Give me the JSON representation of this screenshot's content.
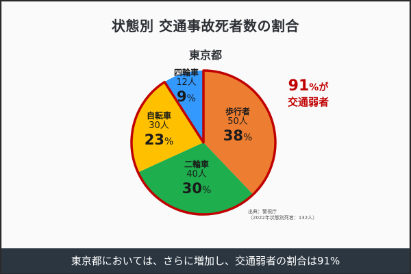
{
  "title": "状態別 交通事故死者数の割合",
  "subtitle": "東京都",
  "chart_data": {
    "type": "pie",
    "title": "状態別 交通事故死者数の割合",
    "subtitle": "東京都",
    "categories": [
      "歩行者",
      "二輪車",
      "自転車",
      "四輪車"
    ],
    "values": [
      50,
      40,
      30,
      12
    ],
    "percentages": [
      38,
      30,
      23,
      9
    ],
    "unit": "人",
    "colors": [
      "#ED7D31",
      "#1EAE4E",
      "#FFC000",
      "#3399FF"
    ],
    "highlight": {
      "categories": [
        "歩行者",
        "二輪車",
        "自転車"
      ],
      "border_color": "#C00000",
      "annotation": "91%が交通弱者"
    },
    "total": 132
  },
  "labels": [
    {
      "category": "歩行者",
      "count": "50人",
      "pct": "38",
      "pct_unit": "%"
    },
    {
      "category": "二輪車",
      "count": "40人",
      "pct": "30",
      "pct_unit": "%"
    },
    {
      "category": "自転車",
      "count": "30人",
      "pct": "23",
      "pct_unit": "%"
    },
    {
      "category": "四輪車",
      "count": "12人",
      "pct": "9",
      "pct_unit": "%"
    }
  ],
  "callout": {
    "number": "91",
    "unit": "%が",
    "line2": "交通弱者"
  },
  "source": {
    "line1": "出典：警視庁",
    "line2": "（2022年状態別死者：132人）"
  },
  "footer": {
    "caption": "東京都においては、さらに増加し、交通弱者の割合は91%"
  }
}
